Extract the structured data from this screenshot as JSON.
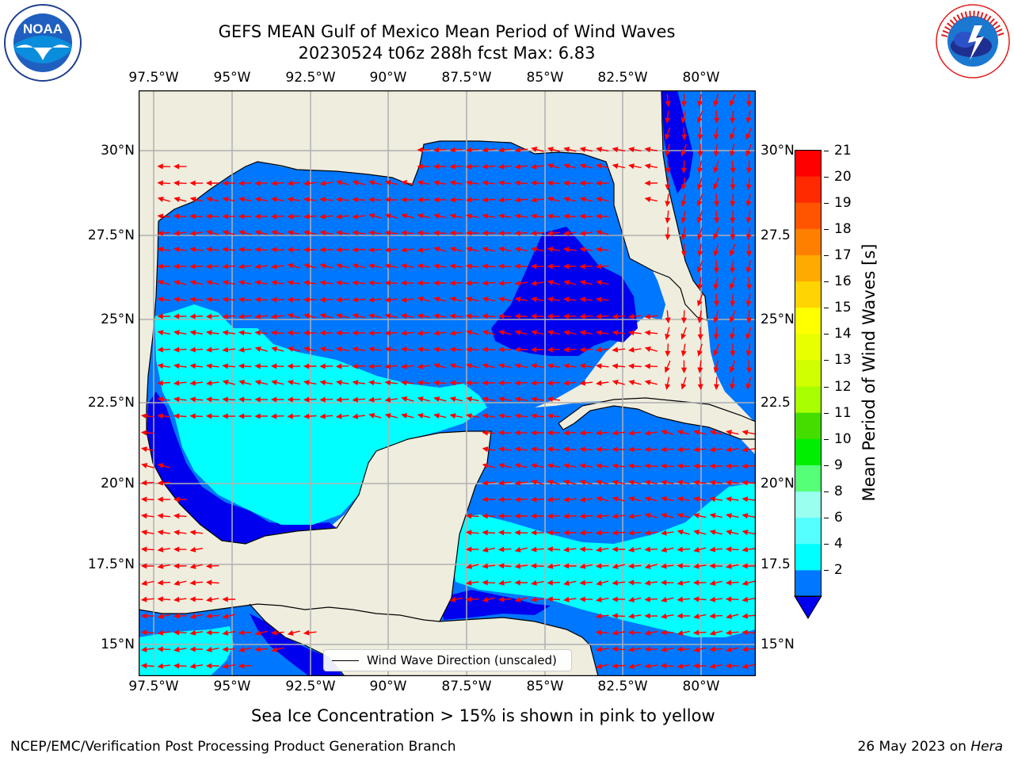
{
  "title": {
    "line1": "GEFS MEAN Gulf of Mexico Mean Period of Wind Waves",
    "line2": "20230524 t06z 288h fcst   Max: 6.83"
  },
  "axes": {
    "lon_labels": [
      "97.5°W",
      "95°W",
      "92.5°W",
      "90°W",
      "87.5°W",
      "85°W",
      "82.5°W",
      "80°W"
    ],
    "lat_labels_left": [
      "30°N",
      "27.5°N",
      "25°N",
      "22.5°N",
      "20°N",
      "17.5°N",
      "15°N"
    ],
    "lat_labels_right": [
      "30°N",
      "27.5",
      "25°N",
      "22.5",
      "20°N",
      "17.5",
      "15°N"
    ]
  },
  "colorbar": {
    "label": "Mean Period of Wind Waves [s]",
    "ticks": [
      "21",
      "20",
      "19",
      "18",
      "17",
      "16",
      "15",
      "14",
      "13",
      "12",
      "11",
      "10",
      "9",
      "8",
      "6",
      "4",
      "2"
    ],
    "colors": [
      "#ff0000",
      "#ff2a00",
      "#ff5500",
      "#ff7f00",
      "#ffaa00",
      "#ffd400",
      "#ffff00",
      "#e8ff00",
      "#cfff00",
      "#a8ff00",
      "#44dd00",
      "#00ee00",
      "#55ff77",
      "#99ffee",
      "#55ffff",
      "#00ffff",
      "#0077ff"
    ],
    "under_color": "#0000ee"
  },
  "legend": {
    "label": "Wind Wave Direction (unscaled)"
  },
  "note": "Sea Ice Concentration > 15% is shown in pink to yellow",
  "footer": {
    "left": "NCEP/EMC/Verification Post Processing Product Generation Branch",
    "date": "26 May 2023 on ",
    "host": "Hera"
  },
  "logos": {
    "noaa": "NOAA",
    "noaa_ring": "NATIONAL OCEANIC AND ATMOSPHERIC ADMINISTRATION · U.S. DEPARTMENT OF COMMERCE",
    "nws_ring": "NATIONAL WEATHER SERVICE"
  },
  "colors": {
    "land": "#efedde",
    "open_water": "#0077ff",
    "calm_water": "#0000ee",
    "long_period": "#00ffff",
    "arrow": "#ff0000",
    "grid": "#b0b0b0"
  }
}
